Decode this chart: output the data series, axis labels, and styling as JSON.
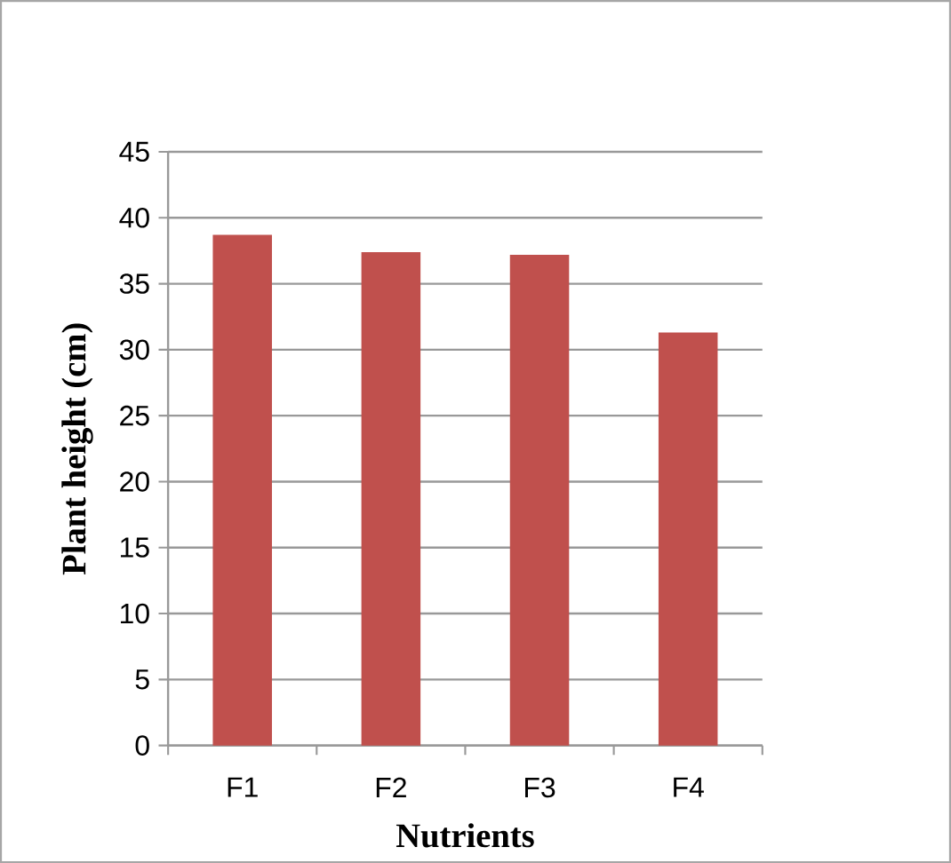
{
  "chart_data": {
    "type": "bar",
    "xlabel": "Nutrients",
    "ylabel": "Plant height (cm)",
    "categories": [
      "F1",
      "F2",
      "F3",
      "F4"
    ],
    "values": [
      38.7,
      37.4,
      37.2,
      31.3
    ],
    "color": "#c0504d",
    "ylim": [
      0,
      45
    ],
    "yticks": [
      0,
      5,
      10,
      15,
      20,
      25,
      30,
      35,
      40,
      45
    ],
    "grid": "y"
  }
}
